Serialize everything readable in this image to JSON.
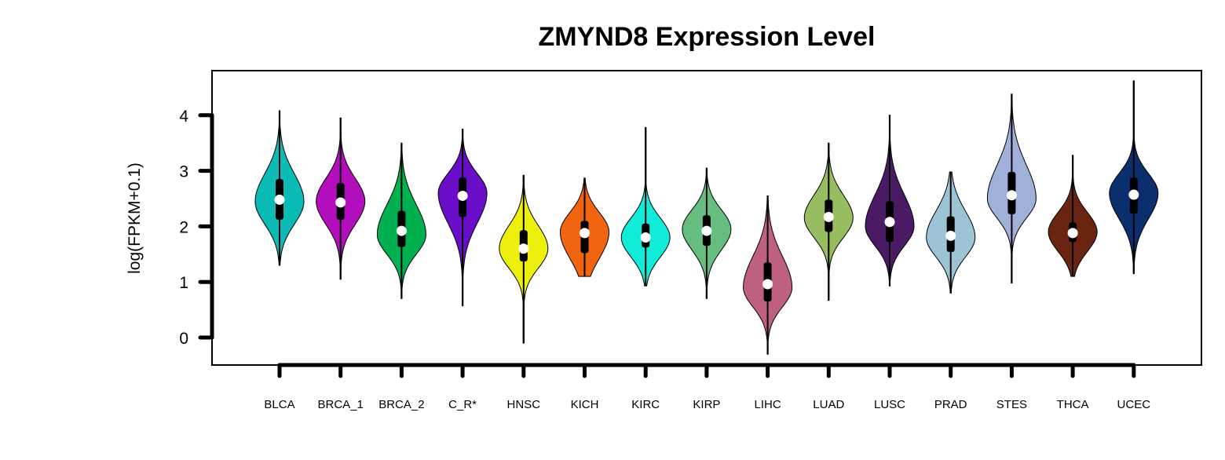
{
  "chart_data": {
    "type": "violin",
    "title": "ZMYND8 Expression Level",
    "xlabel": "",
    "ylabel": "log(FPKM+0.1)",
    "ylim": [
      -0.5,
      4.8
    ],
    "yticks": [
      0,
      1,
      2,
      3,
      4
    ],
    "grid": false,
    "legend": "none",
    "categories": [
      "BLCA",
      "BRCA_1",
      "BRCA_2",
      "C_R*",
      "HNSC",
      "KICH",
      "KIRC",
      "KIRP",
      "LIHC",
      "LUAD",
      "LUSC",
      "PRAD",
      "STES",
      "THCA",
      "UCEC"
    ],
    "colors": [
      "#0ABAB5",
      "#B20EBE",
      "#00B050",
      "#6A0DC8",
      "#ECF00C",
      "#F26510",
      "#10ECD8",
      "#66BD80",
      "#BE6080",
      "#98BD60",
      "#4A1A64",
      "#9CC4D4",
      "#A0B0D8",
      "#6A2410",
      "#0A2E6E"
    ],
    "series": [
      {
        "min": 1.3,
        "q1": 2.12,
        "median": 2.48,
        "q3": 2.85,
        "max": 4.08,
        "mode": 2.45
      },
      {
        "min": 1.05,
        "q1": 2.12,
        "median": 2.43,
        "q3": 2.78,
        "max": 3.95,
        "mode": 2.45
      },
      {
        "min": 0.7,
        "q1": 1.63,
        "median": 1.92,
        "q3": 2.28,
        "max": 3.5,
        "mode": 1.85
      },
      {
        "min": 0.57,
        "q1": 2.17,
        "median": 2.55,
        "q3": 2.88,
        "max": 3.75,
        "mode": 2.6
      },
      {
        "min": -0.1,
        "q1": 1.37,
        "median": 1.6,
        "q3": 1.93,
        "max": 2.92,
        "mode": 1.6
      },
      {
        "min": 1.1,
        "q1": 1.52,
        "median": 1.88,
        "q3": 2.1,
        "max": 2.87,
        "mode": 1.9
      },
      {
        "min": 0.93,
        "q1": 1.62,
        "median": 1.8,
        "q3": 2.05,
        "max": 3.78,
        "mode": 1.8
      },
      {
        "min": 0.7,
        "q1": 1.65,
        "median": 1.92,
        "q3": 2.2,
        "max": 3.05,
        "mode": 1.95
      },
      {
        "min": -0.3,
        "q1": 0.65,
        "median": 0.96,
        "q3": 1.35,
        "max": 2.55,
        "mode": 0.9
      },
      {
        "min": 0.67,
        "q1": 1.9,
        "median": 2.17,
        "q3": 2.48,
        "max": 3.5,
        "mode": 2.15
      },
      {
        "min": 0.93,
        "q1": 1.72,
        "median": 2.08,
        "q3": 2.45,
        "max": 4.0,
        "mode": 2.0
      },
      {
        "min": 0.8,
        "q1": 1.54,
        "median": 1.83,
        "q3": 2.18,
        "max": 2.98,
        "mode": 1.8
      },
      {
        "min": 0.98,
        "q1": 2.22,
        "median": 2.56,
        "q3": 2.98,
        "max": 4.38,
        "mode": 2.5
      },
      {
        "min": 1.1,
        "q1": 1.72,
        "median": 1.88,
        "q3": 2.07,
        "max": 3.28,
        "mode": 1.9
      },
      {
        "min": 1.15,
        "q1": 2.23,
        "median": 2.57,
        "q3": 2.88,
        "max": 4.62,
        "mode": 2.6
      }
    ]
  }
}
